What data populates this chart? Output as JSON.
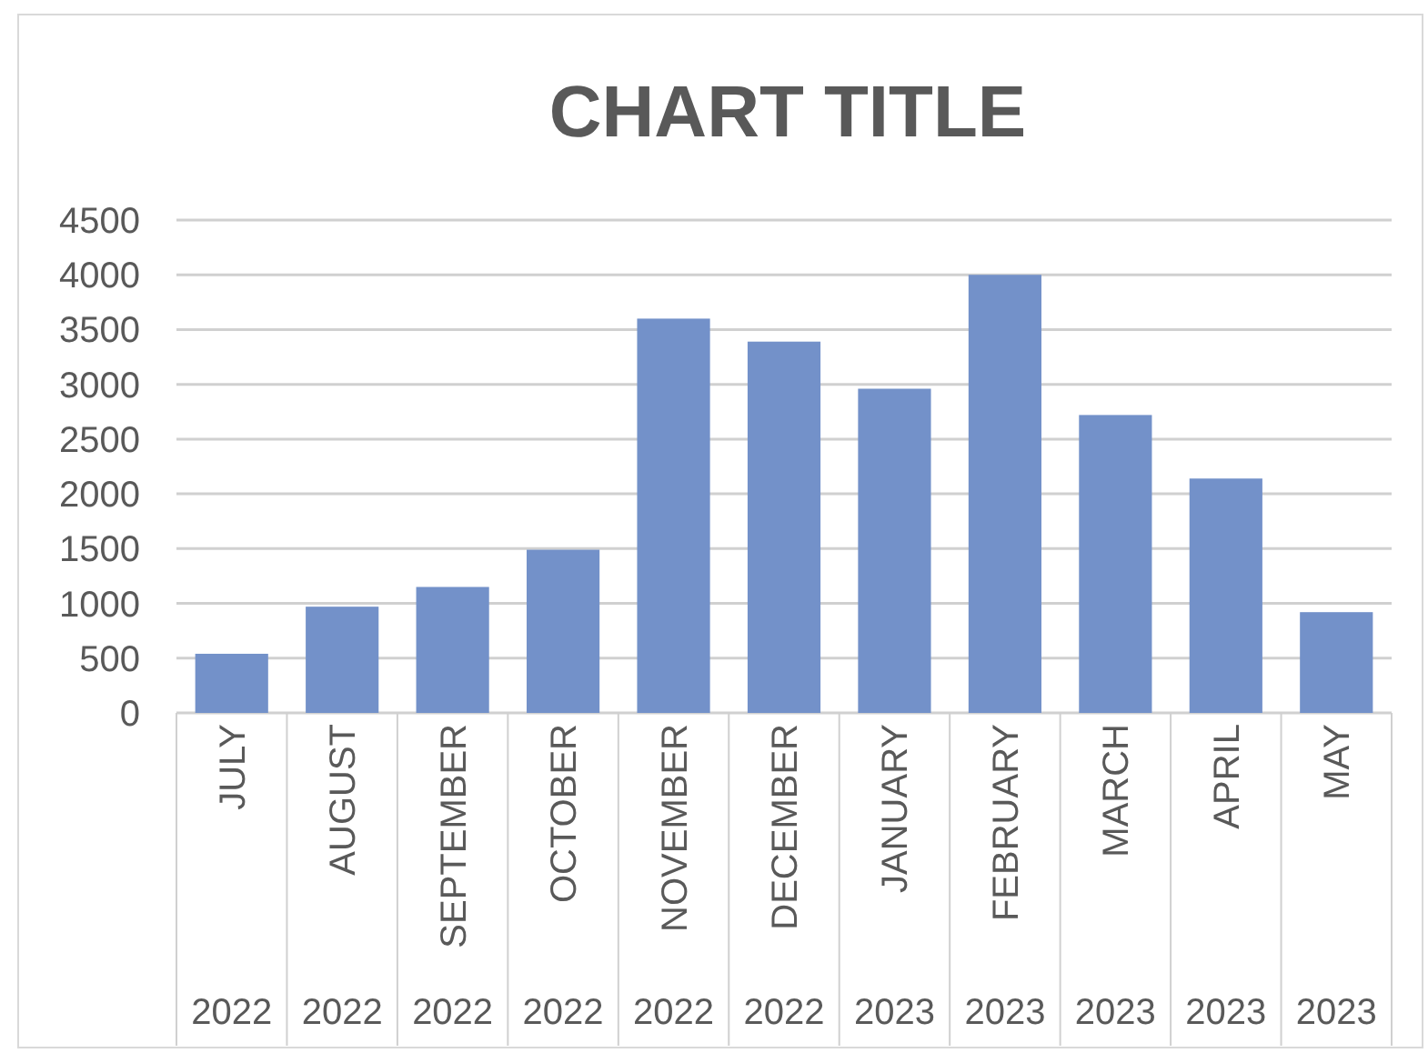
{
  "chart_data": {
    "type": "bar",
    "title": "CHART TITLE",
    "categories": [
      "JULY\n2022",
      "AUGUST\n2022",
      "SEPTEMBER\n2022",
      "OCTOBER\n2022",
      "NOVEMBER\n2022",
      "DECEMBER\n2022",
      "JANUARY\n2023",
      "FEBRUARY\n2023",
      "MARCH\n2023",
      "APRIL\n2023",
      "MAY\n2023"
    ],
    "values": [
      540,
      970,
      1150,
      1490,
      3600,
      3390,
      2960,
      4000,
      2720,
      2140,
      920
    ],
    "color": "#7391c9",
    "ylim": [
      0,
      4500
    ],
    "yticks": [
      0,
      500,
      1000,
      1500,
      2000,
      2500,
      3000,
      3500,
      4000,
      4500
    ],
    "grid": "y"
  }
}
